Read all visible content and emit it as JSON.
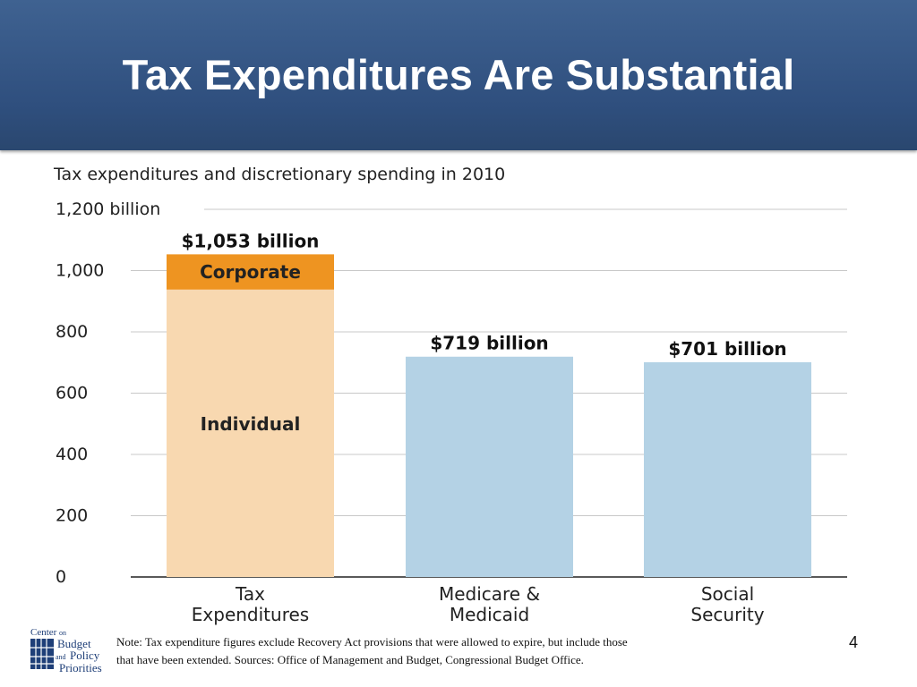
{
  "slide": {
    "title": "Tax Expenditures Are Substantial",
    "page_number": "4",
    "note_line1": "Note:  Tax expenditure figures exclude Recovery Act provisions that were allowed to expire, but include those",
    "note_line2": "that have been extended.  Sources:  Office of Management and Budget, Congressional Budget Office."
  },
  "logo": {
    "line1": "Center",
    "line1_small": "on",
    "line2": "Budget",
    "line3_small": "and",
    "line3": "Policy",
    "line4": "Priorities"
  },
  "colors": {
    "title_bar": "#2f4f7e",
    "individual": "#f8d8b0",
    "corporate": "#ee9421",
    "medicare": "#b4d2e5",
    "social_security": "#b4d2e5"
  },
  "chart_data": {
    "type": "bar",
    "title": "Tax expenditures and discretionary spending in 2010",
    "categories": [
      "Tax\nExpenditures",
      "Medicare &\nMedicaid",
      "Social\nSecurity"
    ],
    "series": [
      {
        "name": "Individual",
        "values": [
          938,
          719,
          701
        ]
      },
      {
        "name": "Corporate",
        "values": [
          115,
          0,
          0
        ]
      }
    ],
    "totals": [
      1053,
      719,
      701
    ],
    "total_labels": [
      "$1,053 billion",
      "$719 billion",
      "$701 billion"
    ],
    "yticks": [
      "0",
      "200",
      "400",
      "600",
      "800",
      "1,000",
      "1,200 billion"
    ],
    "ytick_values": [
      0,
      200,
      400,
      600,
      800,
      1000,
      1200
    ],
    "ylim": [
      0,
      1200
    ],
    "grid": true,
    "xlabel": "",
    "ylabel": ""
  }
}
